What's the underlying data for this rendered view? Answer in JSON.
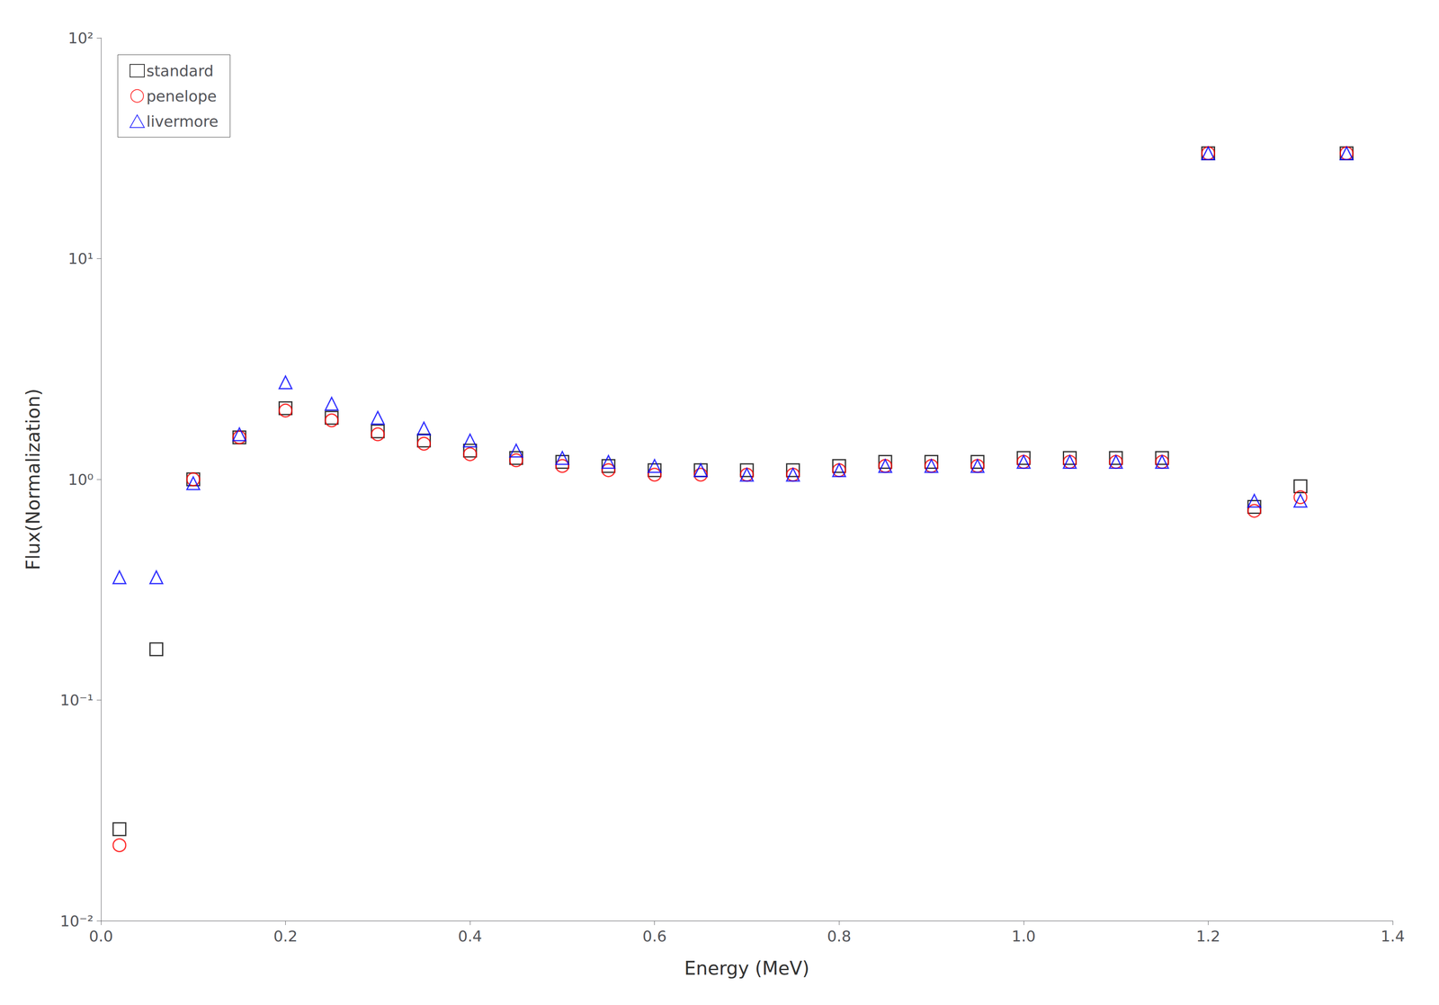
{
  "chart_data": {
    "type": "scatter",
    "xlabel": "Energy (MeV)",
    "ylabel": "Flux(Normalization)",
    "log": "y",
    "xlim": [
      0.0,
      1.4
    ],
    "ylim": [
      0.01,
      100
    ],
    "xticks": [
      {
        "value": 0.0,
        "label": "0.0"
      },
      0.2,
      0.4,
      0.6,
      0.8,
      {
        "value": 1.0,
        "label": "1.0"
      },
      1.2,
      1.4
    ],
    "yticks": [
      {
        "value": 0.01,
        "label": "10⁻²"
      },
      {
        "value": 0.1,
        "label": "10⁻¹"
      },
      {
        "value": 1,
        "label": "10⁰"
      },
      {
        "value": 10,
        "label": "10¹"
      },
      {
        "value": 100,
        "label": "10²"
      }
    ],
    "grid": false,
    "legend": "upper left",
    "series": [
      {
        "name": "standard",
        "color": "black",
        "marker": "square",
        "x": [
          0.02,
          0.06,
          0.1,
          0.15,
          0.2,
          0.25,
          0.3,
          0.35,
          0.4,
          0.45,
          0.5,
          0.55,
          0.6,
          0.65,
          0.7,
          0.75,
          0.8,
          0.85,
          0.9,
          0.95,
          1.0,
          1.05,
          1.1,
          1.15,
          1.2,
          1.25,
          1.3,
          1.35
        ],
        "values": [
          0.026,
          0.17,
          1.0,
          1.55,
          2.1,
          1.9,
          1.65,
          1.5,
          1.35,
          1.25,
          1.2,
          1.15,
          1.1,
          1.1,
          1.1,
          1.1,
          1.15,
          1.2,
          1.2,
          1.2,
          1.25,
          1.25,
          1.25,
          1.25,
          30.0,
          0.75,
          0.93,
          30.0
        ]
      },
      {
        "name": "penelope",
        "color": "red",
        "marker": "circle",
        "x": [
          0.02,
          0.1,
          0.15,
          0.2,
          0.25,
          0.3,
          0.35,
          0.4,
          0.45,
          0.5,
          0.55,
          0.6,
          0.65,
          0.7,
          0.75,
          0.8,
          0.85,
          0.9,
          0.95,
          1.0,
          1.05,
          1.1,
          1.15,
          1.2,
          1.25,
          1.3,
          1.35
        ],
        "values": [
          0.022,
          1.0,
          1.55,
          2.05,
          1.85,
          1.6,
          1.45,
          1.3,
          1.22,
          1.15,
          1.1,
          1.05,
          1.05,
          1.05,
          1.05,
          1.1,
          1.15,
          1.15,
          1.15,
          1.2,
          1.2,
          1.2,
          1.2,
          30.0,
          0.72,
          0.83,
          30.0
        ]
      },
      {
        "name": "livermore",
        "color": "blue",
        "marker": "triangle",
        "x": [
          0.02,
          0.06,
          0.1,
          0.15,
          0.2,
          0.25,
          0.3,
          0.35,
          0.4,
          0.45,
          0.5,
          0.55,
          0.6,
          0.65,
          0.7,
          0.75,
          0.8,
          0.85,
          0.9,
          0.95,
          1.0,
          1.05,
          1.1,
          1.15,
          1.2,
          1.25,
          1.3,
          1.35
        ],
        "values": [
          0.36,
          0.36,
          0.96,
          1.6,
          2.75,
          2.2,
          1.9,
          1.7,
          1.5,
          1.35,
          1.25,
          1.2,
          1.15,
          1.1,
          1.05,
          1.05,
          1.1,
          1.15,
          1.15,
          1.15,
          1.2,
          1.2,
          1.2,
          1.2,
          30.0,
          0.8,
          0.8,
          30.0
        ]
      }
    ]
  }
}
